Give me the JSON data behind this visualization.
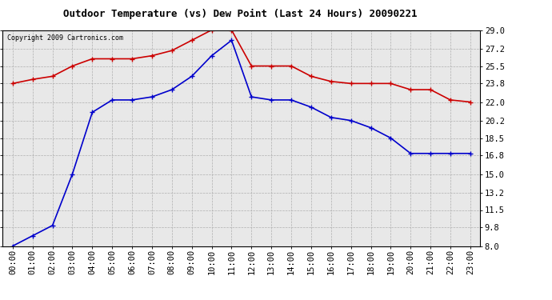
{
  "title": "Outdoor Temperature (vs) Dew Point (Last 24 Hours) 20090221",
  "copyright": "Copyright 2009 Cartronics.com",
  "hours": [
    "00:00",
    "01:00",
    "02:00",
    "03:00",
    "04:00",
    "05:00",
    "06:00",
    "07:00",
    "08:00",
    "09:00",
    "10:00",
    "11:00",
    "12:00",
    "13:00",
    "14:00",
    "15:00",
    "16:00",
    "17:00",
    "18:00",
    "19:00",
    "20:00",
    "21:00",
    "22:00",
    "23:00"
  ],
  "temp": [
    23.8,
    24.2,
    24.5,
    25.5,
    26.2,
    26.2,
    26.2,
    26.5,
    27.0,
    28.0,
    29.0,
    29.0,
    25.5,
    25.5,
    25.5,
    24.5,
    24.0,
    23.8,
    23.8,
    23.8,
    23.2,
    23.2,
    22.2,
    22.0
  ],
  "dew": [
    8.0,
    9.0,
    10.0,
    15.0,
    21.0,
    22.2,
    22.2,
    22.5,
    23.2,
    24.5,
    26.5,
    28.0,
    22.5,
    22.2,
    22.2,
    21.5,
    20.5,
    20.2,
    19.5,
    18.5,
    17.0,
    17.0,
    17.0,
    17.0
  ],
  "temp_color": "#cc0000",
  "dew_color": "#0000cc",
  "bg_color": "#ffffff",
  "plot_bg": "#e8e8e8",
  "grid_color": "#aaaaaa",
  "ylim": [
    8.0,
    29.0
  ],
  "yticks": [
    8.0,
    9.8,
    11.5,
    13.2,
    15.0,
    16.8,
    18.5,
    20.2,
    22.0,
    23.8,
    25.5,
    27.2,
    29.0
  ],
  "title_fontsize": 9,
  "tick_fontsize": 7.5,
  "copyright_fontsize": 6
}
